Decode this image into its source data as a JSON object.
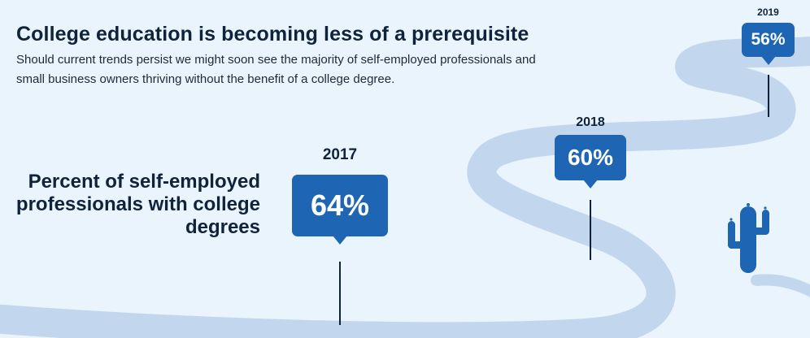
{
  "chart_data": {
    "type": "bar",
    "title": "College education is becoming less of a prerequisite",
    "subtitle": "Should current trends persist we might soon see the majority of self-employed professionals and small business owners thriving without the benefit of a college degree.",
    "ylabel": "Percent of self-employed professionals with college degrees",
    "categories": [
      "2017",
      "2018",
      "2019"
    ],
    "values": [
      64,
      60,
      56
    ],
    "value_labels": [
      "64%",
      "60%",
      "56%"
    ],
    "unit": "%"
  },
  "colors": {
    "background": "#e9f4fd",
    "road": "#c2d7ee",
    "accent": "#1e66b3",
    "text": "#10233a",
    "cactus": "#1e66b3"
  },
  "decor": {
    "cactus_icon": "cactus-icon",
    "road": "winding-road"
  }
}
